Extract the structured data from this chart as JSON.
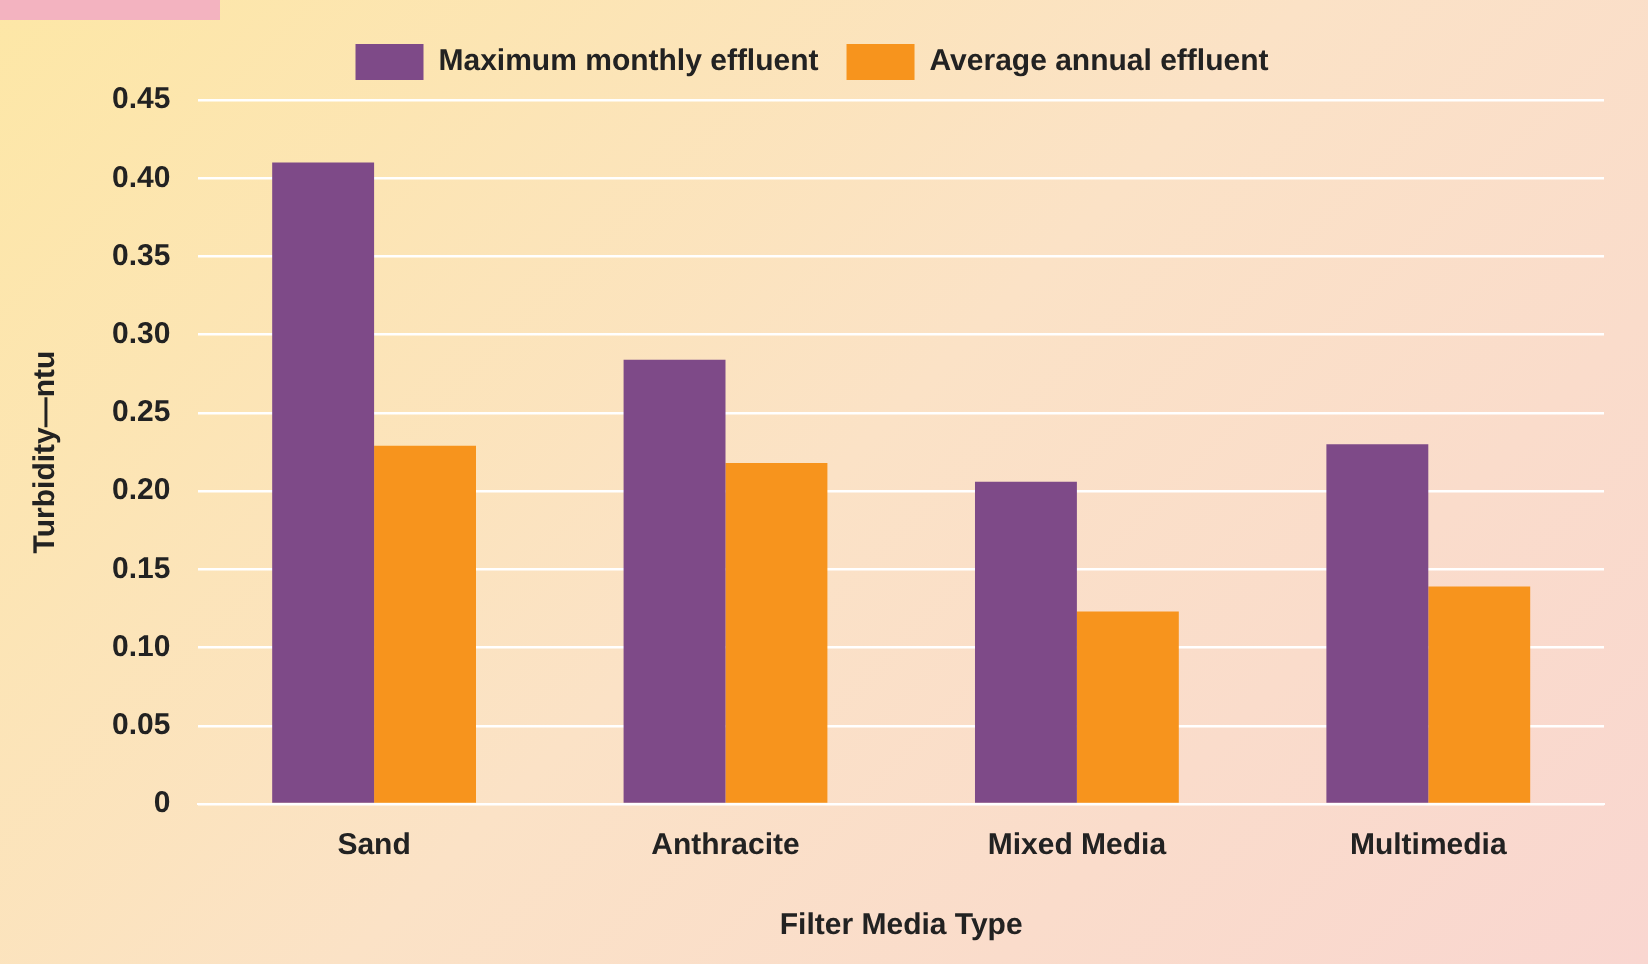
{
  "chart_data": {
    "type": "bar",
    "xlabel": "Filter Media Type",
    "ylabel": "Turbidity—ntu",
    "categories": [
      "Sand",
      "Anthracite",
      "Mixed Media",
      "Multimedia"
    ],
    "series": [
      {
        "name": "Maximum monthly effluent",
        "color": "#7e4a88",
        "values": [
          0.41,
          0.284,
          0.206,
          0.23
        ]
      },
      {
        "name": "Average annual effluent",
        "color": "#f7941d",
        "values": [
          0.229,
          0.218,
          0.123,
          0.139
        ]
      }
    ],
    "ylim": [
      0,
      0.45
    ],
    "yticks": [
      0,
      0.05,
      {
        "value": 0.1,
        "label": "0.10"
      },
      0.15,
      {
        "value": 0.2,
        "label": "0.20"
      },
      0.25,
      {
        "value": 0.3,
        "label": "0.30"
      },
      0.35,
      {
        "value": 0.4,
        "label": "0.40"
      },
      0.45
    ],
    "grid": "y",
    "legend": "top"
  }
}
